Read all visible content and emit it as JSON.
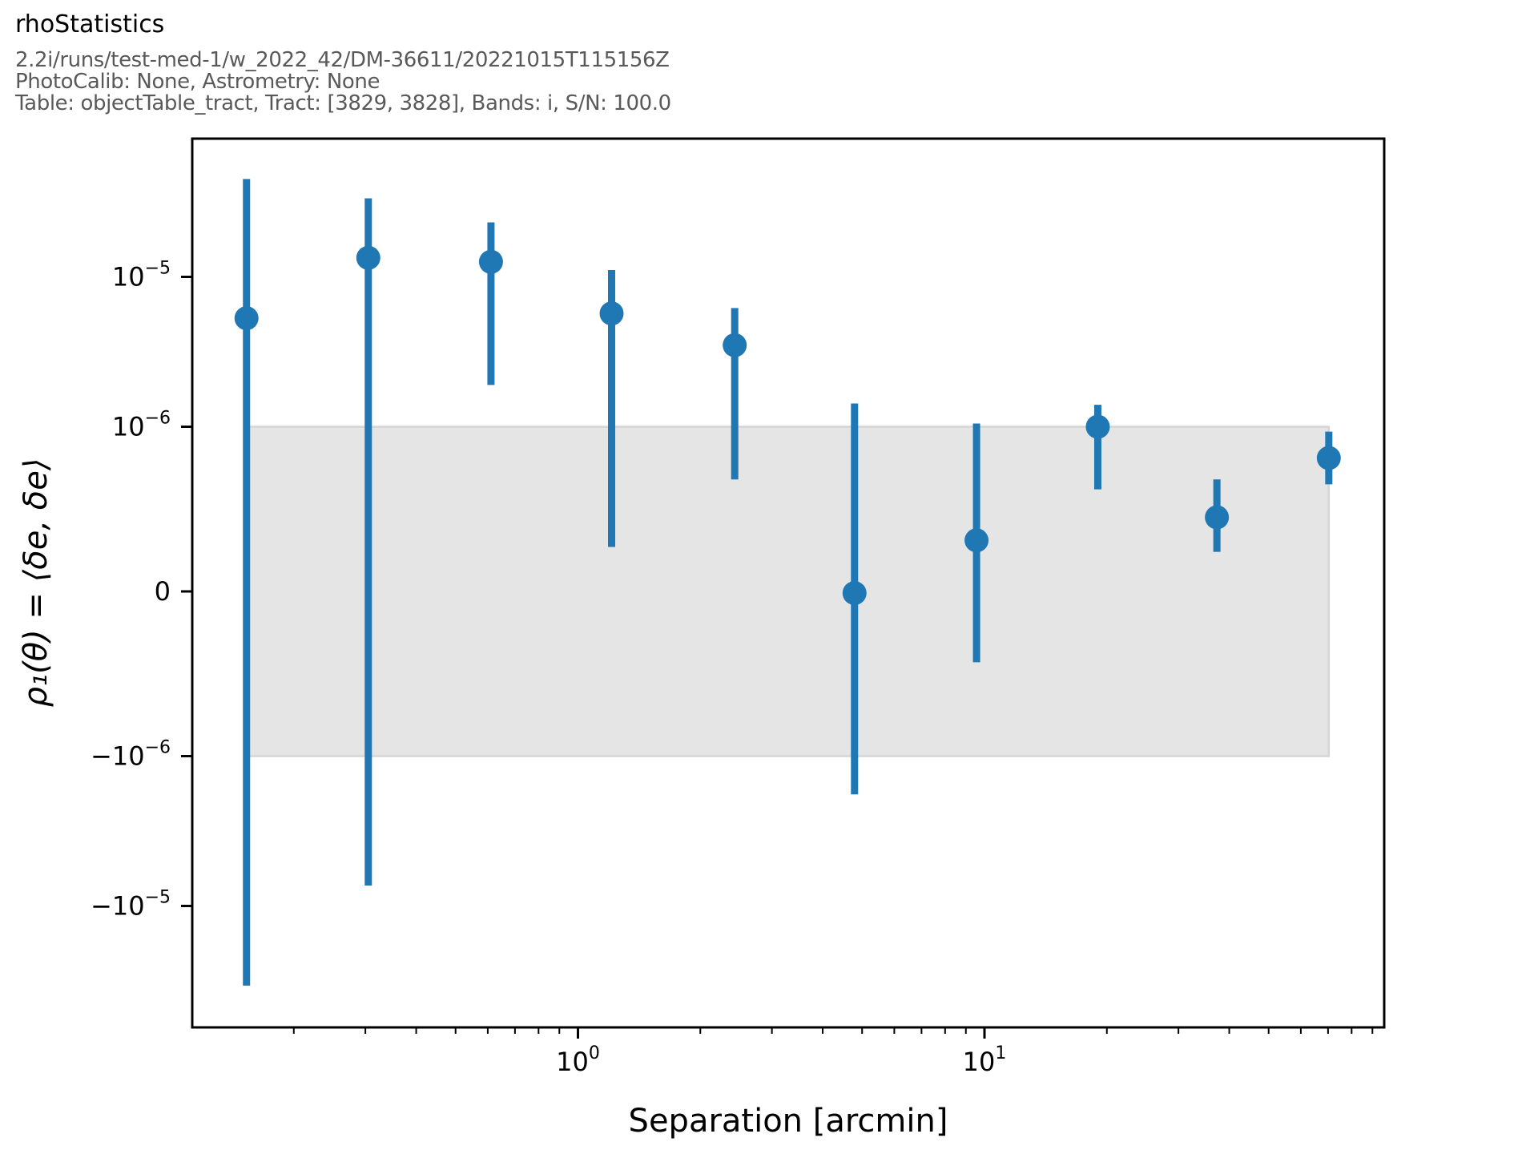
{
  "figure": {
    "title": "rhoStatistics",
    "subtitle_lines": [
      "2.2i/runs/test-med-1/w_2022_42/DM-36611/20221015T115156Z",
      "PhotoCalib: None, Astrometry: None",
      "Table: objectTable_tract, Tract: [3829, 3828], Bands: i, S/N: 100.0"
    ]
  },
  "chart_data": {
    "type": "scatter",
    "title": "rhoStatistics",
    "xlabel": "Separation [arcmin]",
    "ylabel": "ρ₁(θ) = ⟨δe, δe⟩",
    "x_scale": "log",
    "y_scale": "symlog",
    "y_linthresh": 1e-06,
    "xlim": [
      0.113,
      95.8
    ],
    "ylim": [
      -6.4e-05,
      8.4e-05
    ],
    "grid": false,
    "legend": "none",
    "series": [
      {
        "name": "rho1",
        "x": [
          0.153,
          0.305,
          0.611,
          1.21,
          2.43,
          4.79,
          9.56,
          19.0,
          37.3,
          70.3
        ],
        "y": [
          5.3e-06,
          1.34e-05,
          1.26e-05,
          5.7e-06,
          3.5e-06,
          -1e-08,
          3.1e-07,
          1e-06,
          4.5e-07,
          8.1e-07
        ],
        "y_err_low": [
          -3.4e-05,
          -7.3e-06,
          1.9e-06,
          2.7e-07,
          6.8e-07,
          -1.8e-06,
          -4.3e-07,
          6.2e-07,
          2.4e-07,
          6.5e-07
        ],
        "y_err_high": [
          4.5e-05,
          3.34e-05,
          2.31e-05,
          1.11e-05,
          6.2e-06,
          1.43e-06,
          1.05e-06,
          1.4e-06,
          6.8e-07,
          9.7e-07
        ]
      }
    ],
    "band": {
      "y_low": -1e-06,
      "y_high": 1e-06,
      "x_start": 0.153,
      "x_end": 70.3
    },
    "x_ticks": [
      {
        "value": 1,
        "base": "10",
        "exp": "0"
      },
      {
        "value": 10,
        "base": "10",
        "exp": "1"
      }
    ],
    "x_minor_ticks": [
      0.2,
      0.3,
      0.4,
      0.5,
      0.6,
      0.7,
      0.8,
      0.9,
      2,
      3,
      4,
      5,
      6,
      7,
      8,
      9,
      20,
      30,
      40,
      50,
      60,
      70,
      80,
      90
    ],
    "y_ticks": [
      {
        "value": 1e-05,
        "base": "10",
        "exp": "−5"
      },
      {
        "value": 1e-06,
        "base": "10",
        "exp": "−6"
      },
      {
        "value": 0,
        "base": "0",
        "exp": ""
      },
      {
        "value": -1e-06,
        "base": "−10",
        "exp": "−6"
      },
      {
        "value": -1e-05,
        "base": "−10",
        "exp": "−5"
      }
    ],
    "colors": {
      "marker": "#1f77b4",
      "errorbar": "#1f77b4",
      "band_fill": "#e5e5e5",
      "band_edge": "#d5d5d5",
      "axis": "#000000",
      "subtitle_text": "#595959"
    }
  }
}
